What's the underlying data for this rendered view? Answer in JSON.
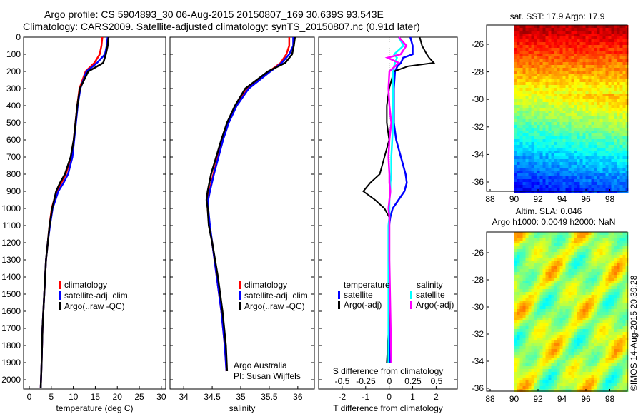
{
  "title": {
    "line1": "Argo profile: CS 5904893_30 06-Aug-2015 20150807_169 30.639S 93.543E",
    "line2": "Climatology: CARS2009. Satellite-adjusted climatology: synTS_20150807.nc (0.91d later)"
  },
  "colors": {
    "climatology": "#ff0000",
    "satellite": "#0000ff",
    "argo": "#000000",
    "sal_satellite": "#00ffff",
    "sal_argo": "#ff00ff"
  },
  "chart_data": [
    {
      "type": "line",
      "xlabel": "temperature (deg C)",
      "xlim": [
        -1.3,
        31
      ],
      "ylim": [
        0,
        2050
      ],
      "yreversed": true,
      "yticks": [
        0,
        100,
        200,
        300,
        400,
        500,
        600,
        700,
        800,
        900,
        1000,
        1100,
        1200,
        1300,
        1400,
        1500,
        1600,
        1700,
        1800,
        1900,
        2000
      ],
      "xticks": [
        0,
        5,
        10,
        15,
        20,
        25,
        30
      ],
      "legend": [
        "climatology",
        "satellite-adj. clim.",
        "Argo(..raw -QC)"
      ],
      "depth": [
        0,
        50,
        100,
        150,
        200,
        300,
        400,
        500,
        600,
        700,
        800,
        850,
        900,
        1000,
        1100,
        1200,
        1300,
        1400,
        1500,
        1700,
        1900,
        2050
      ],
      "series": [
        {
          "name": "climatology",
          "color": "climatology",
          "values": [
            16.6,
            16.4,
            16,
            14.8,
            12.8,
            11.4,
            10.9,
            10.5,
            10.1,
            9.5,
            8.3,
            7.3,
            6.2,
            5.1,
            4.6,
            4.2,
            3.8,
            3.6,
            3.4,
            3.0,
            2.8,
            2.6
          ]
        },
        {
          "name": "satellite-adj. clim.",
          "color": "satellite",
          "values": [
            17.8,
            17.6,
            17.2,
            15.4,
            13,
            11.6,
            11,
            10.6,
            10.2,
            9.8,
            8.8,
            7.8,
            6.6,
            5.3,
            4.7,
            4.2,
            3.8,
            3.6,
            3.4,
            3.0,
            2.8,
            2.6
          ]
        },
        {
          "name": "Argo(..raw -QC)",
          "color": "argo",
          "values": [
            18,
            17.8,
            17.4,
            16.8,
            13.4,
            11.5,
            10.9,
            10.5,
            10.1,
            9.4,
            8.1,
            7,
            6.1,
            5.2,
            4.6,
            4.2,
            3.8,
            3.6,
            3.4,
            3.0,
            2.8,
            2.6
          ]
        }
      ]
    },
    {
      "type": "line",
      "xlabel": "salinity",
      "xlim": [
        33.76,
        36.29
      ],
      "ylim": [
        0,
        2050
      ],
      "yreversed": true,
      "xticks": [
        34,
        34.5,
        35,
        35.5,
        36
      ],
      "legend": [
        "climatology",
        "satellite-adj. clim.",
        "Argo(..raw -QC)"
      ],
      "annotation": [
        "Argo Australia",
        "PI: Susan Wijffels"
      ],
      "depth": [
        0,
        50,
        100,
        150,
        200,
        300,
        400,
        500,
        600,
        700,
        800,
        900,
        950,
        1000,
        1100,
        1200,
        1400,
        1600,
        1800,
        1950
      ],
      "series": [
        {
          "name": "climatology",
          "color": "climatology",
          "values": [
            35.85,
            35.85,
            35.8,
            35.7,
            35.5,
            35.12,
            34.92,
            34.78,
            34.68,
            34.6,
            34.52,
            34.45,
            34.42,
            34.42,
            34.45,
            34.5,
            34.58,
            34.66,
            34.72,
            34.75
          ]
        },
        {
          "name": "satellite-adj. clim.",
          "color": "satellite",
          "values": [
            35.92,
            35.92,
            35.85,
            35.72,
            35.52,
            35.14,
            34.93,
            34.79,
            34.69,
            34.61,
            34.53,
            34.46,
            34.43,
            34.43,
            34.46,
            34.5,
            34.58,
            34.66,
            34.72,
            34.75
          ]
        },
        {
          "name": "Argo(..raw -QC)",
          "color": "argo",
          "values": [
            35.95,
            35.93,
            35.9,
            35.78,
            35.48,
            35.08,
            34.9,
            34.76,
            34.66,
            34.57,
            34.48,
            34.42,
            34.4,
            34.42,
            34.44,
            34.5,
            34.6,
            34.68,
            34.74,
            34.76
          ]
        }
      ]
    },
    {
      "type": "line",
      "xlabel": "T difference from climatology",
      "x2label": "S difference from climatology",
      "xlim": [
        -3.0,
        2.9
      ],
      "x2lim": [
        -0.75,
        0.72
      ],
      "xticks": [
        -2,
        -1,
        0,
        1,
        2
      ],
      "x2ticks": [
        -0.5,
        -0.25,
        0,
        0.25,
        0.5
      ],
      "legend": {
        "temperature": "temperature",
        "salinity": "salinity",
        "t_sat": "satellite",
        "t_argo": "Argo(-adj)",
        "s_sat": "satellite",
        "s_argo": "Argo(-adj)"
      },
      "depth": [
        0,
        50,
        100,
        120,
        150,
        170,
        200,
        300,
        400,
        500,
        600,
        700,
        800,
        850,
        900,
        950,
        1000,
        1050,
        1100,
        1300,
        1600,
        1900
      ],
      "series": [
        {
          "name": "T satellite",
          "axis": "T",
          "color": "satellite",
          "values": [
            0.9,
            1.0,
            1.0,
            0.6,
            0.5,
            0.35,
            0.25,
            0.2,
            0.2,
            0.2,
            0.3,
            0.5,
            0.7,
            0.75,
            0.65,
            0.4,
            0.15,
            0.05,
            0,
            0,
            0.02,
            0.05
          ]
        },
        {
          "name": "T Argo(-adj)",
          "axis": "T",
          "color": "argo",
          "values": [
            1.3,
            1.4,
            1.6,
            1.7,
            1.9,
            0.8,
            0.2,
            0,
            -0.1,
            -0.1,
            0,
            -0.2,
            -0.4,
            -0.8,
            -1.1,
            -0.6,
            -0.2,
            0,
            0,
            0,
            0.02,
            -0.1
          ]
        },
        {
          "name": "S satellite",
          "axis": "S",
          "color": "sal_satellite",
          "values": [
            0.1,
            0.15,
            0.05,
            0.08,
            0.06,
            0.05,
            0.04,
            0.04,
            0.04,
            0.04,
            0.03,
            0.02,
            0.02,
            0.01,
            0.01,
            0,
            0,
            0,
            -0.01,
            -0.01,
            -0.01,
            -0.01
          ]
        },
        {
          "name": "S Argo(-adj)",
          "axis": "S",
          "color": "sal_argo",
          "values": [
            0.1,
            0.18,
            0.12,
            -0.02,
            0.1,
            0.06,
            0,
            -0.01,
            0,
            0.02,
            0,
            -0.01,
            0,
            0,
            0.01,
            0,
            -0.01,
            0,
            0,
            0,
            0.01,
            0.02
          ]
        }
      ]
    },
    {
      "type": "heatmap",
      "title": "sat. SST: 17.9 Argo: 17.9",
      "xticks": [
        88,
        90,
        92,
        94,
        96,
        98
      ],
      "yticks": [
        -26,
        -28,
        -30,
        -32,
        -34,
        -36
      ],
      "xlim": [
        87,
        99.5
      ],
      "ylim": [
        -36.6,
        -24.6
      ]
    },
    {
      "type": "heatmap",
      "title": [
        "Altim. SLA: 0.046",
        "Argo h1000: 0.0049 h2000: NaN"
      ],
      "xticks": [
        88,
        90,
        92,
        94,
        96,
        98
      ],
      "yticks": [
        -26,
        -28,
        -30,
        -32,
        -34,
        -36
      ],
      "xlim": [
        87,
        99.5
      ],
      "ylim": [
        -36.2,
        -24.6
      ]
    }
  ],
  "credit": "©IMOS 14-Aug-2015 20:39:28"
}
